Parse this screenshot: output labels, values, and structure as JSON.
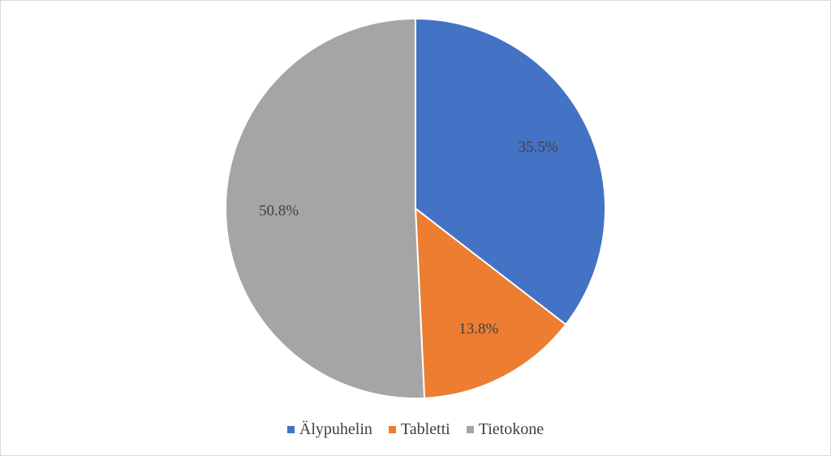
{
  "chart_data": {
    "type": "pie",
    "categories": [
      "Älypuhelin",
      "Tabletti",
      "Tietokone"
    ],
    "values": [
      35.5,
      13.8,
      50.8
    ],
    "data_labels": [
      "35.5%",
      "13.8%",
      "50.8%"
    ],
    "colors": [
      "#4472c4",
      "#ed7d31",
      "#a5a5a5"
    ],
    "start_angle": "top, clockwise",
    "legend_position": "bottom"
  }
}
